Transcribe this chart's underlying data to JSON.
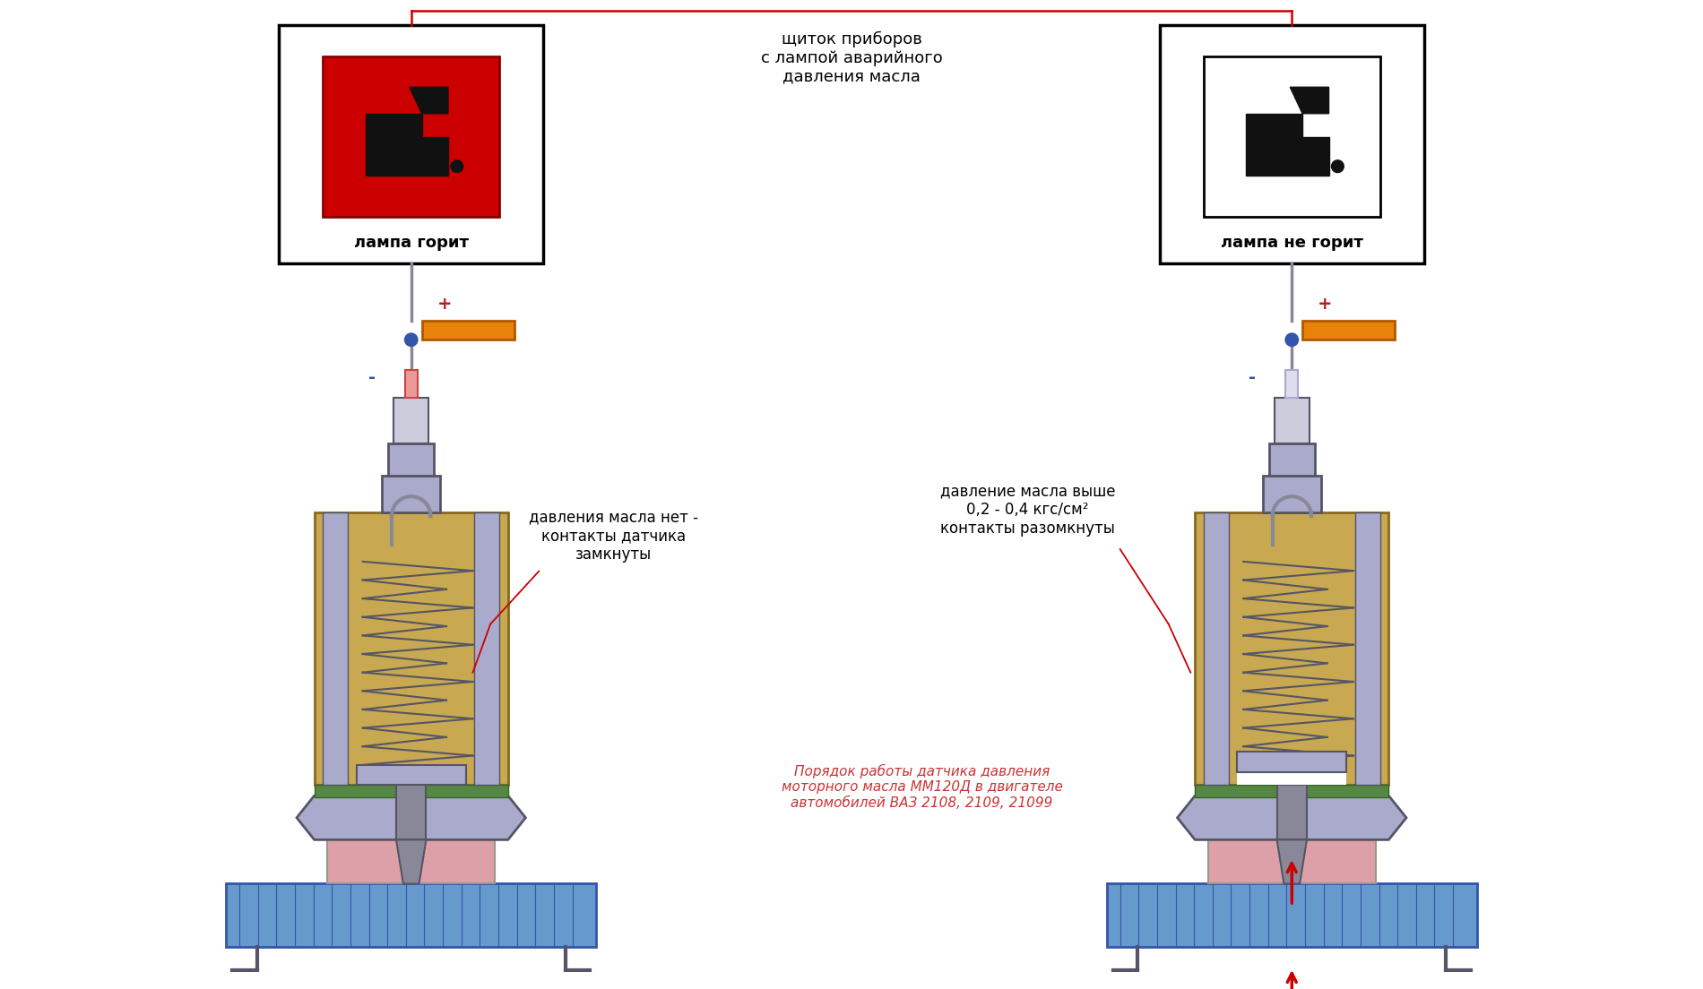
{
  "bg_color": "#ffffff",
  "title_center": "щиток приборов\nс лампой аварийного\nдавления масла",
  "label_left": "лампа горит",
  "label_right": "лампа не горит",
  "text_left_sensor": "давления масла нет -\nконтакты датчика\nзамкнуты",
  "text_right_sensor": "давление масла выше\n0,2 - 0,4 кгс/см²\nконтакты разомкнуты",
  "bottom_text": "Порядок работы датчика давления\nмоторного масла ММ120Д в двигателе\nавтомобилей ВАЗ 2108, 2109, 21099",
  "plus_sign": "+",
  "minus_sign": "-",
  "color_red": "#cc0000",
  "color_orange": "#e8820a",
  "color_blue": "#3355aa",
  "color_gold": "#c8a850",
  "color_gray": "#888899",
  "color_dark": "#333344",
  "color_pink": "#e8a0a0",
  "color_green": "#558844",
  "spring_color": "#555566"
}
